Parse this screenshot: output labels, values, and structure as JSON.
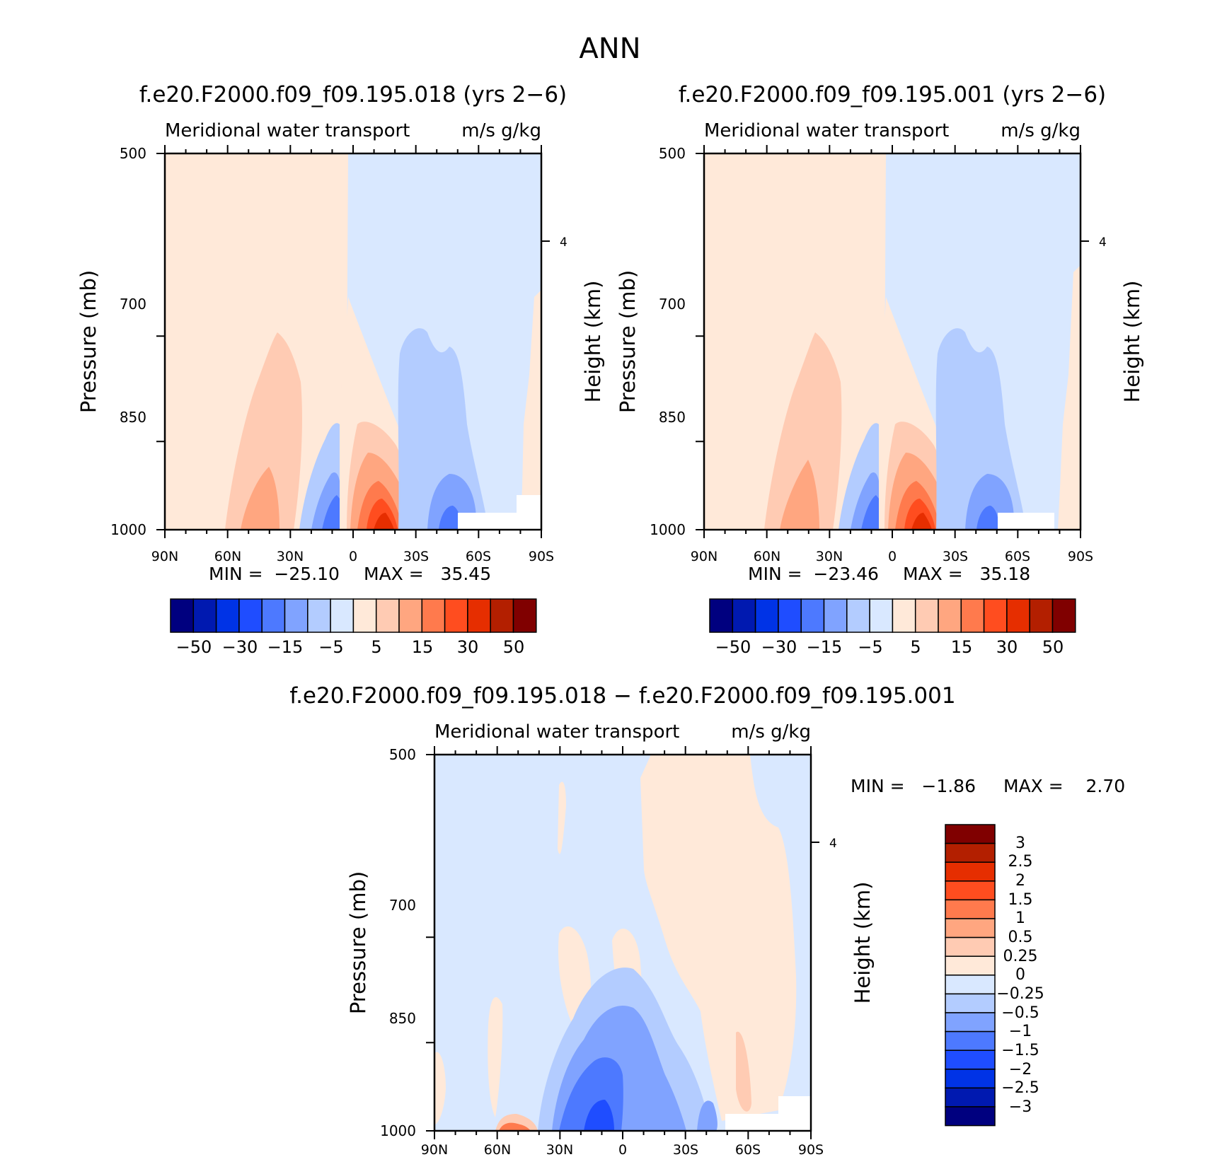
{
  "figure_title": "ANN",
  "chart_data": [
    {
      "type": "heatmap",
      "title": "f.e20.F2000.f09_f09.195.018 (yrs 2-6)",
      "variable_label": "Meridional water transport",
      "units": "m/s g/kg",
      "ylabel": "Pressure (mb)",
      "ylabel_right": "Height (km)",
      "x_ticks": [
        "90N",
        "60N",
        "30N",
        "0",
        "30S",
        "60S",
        "90S"
      ],
      "y_ticks": [
        500,
        700,
        850,
        1000
      ],
      "y_right_ticks": [
        4
      ],
      "ylim": [
        1000,
        500
      ],
      "min_text": "MIN =  -25.10",
      "max_text": "MAX =   35.45",
      "stats": {
        "min": -25.1,
        "max": 35.45
      },
      "colorbar": {
        "levels": [
          -50,
          -40,
          -30,
          -20,
          -15,
          -10,
          -5,
          0,
          5,
          10,
          15,
          20,
          30,
          40,
          50
        ],
        "labels": [
          "-50",
          "-30",
          "-15",
          "-5",
          "5",
          "15",
          "30",
          "50"
        ]
      }
    },
    {
      "type": "heatmap",
      "title": "f.e20.F2000.f09_f09.195.001 (yrs 2-6)",
      "variable_label": "Meridional water transport",
      "units": "m/s g/kg",
      "ylabel": "Pressure (mb)",
      "ylabel_right": "Height (km)",
      "x_ticks": [
        "90N",
        "60N",
        "30N",
        "0",
        "30S",
        "60S",
        "90S"
      ],
      "y_ticks": [
        500,
        700,
        850,
        1000
      ],
      "y_right_ticks": [
        4
      ],
      "ylim": [
        1000,
        500
      ],
      "min_text": "MIN =  -23.46",
      "max_text": "MAX =   35.18",
      "stats": {
        "min": -23.46,
        "max": 35.18
      },
      "colorbar": {
        "levels": [
          -50,
          -40,
          -30,
          -20,
          -15,
          -10,
          -5,
          0,
          5,
          10,
          15,
          20,
          30,
          40,
          50
        ],
        "labels": [
          "-50",
          "-30",
          "-15",
          "-5",
          "5",
          "15",
          "30",
          "50"
        ]
      }
    },
    {
      "type": "heatmap",
      "title": "f.e20.F2000.f09_f09.195.018 - f.e20.F2000.f09_f09.195.001",
      "variable_label": "Meridional water transport",
      "units": "m/s g/kg",
      "ylabel": "Pressure (mb)",
      "ylabel_right": "Height (km)",
      "x_ticks": [
        "90N",
        "60N",
        "30N",
        "0",
        "30S",
        "60S",
        "90S"
      ],
      "y_ticks": [
        500,
        700,
        850,
        1000
      ],
      "y_right_ticks": [
        4
      ],
      "ylim": [
        1000,
        500
      ],
      "min_text": "MIN =   -1.86",
      "max_text": "MAX =    2.70",
      "stats": {
        "min": -1.86,
        "max": 2.7
      },
      "colorbar": {
        "levels": [
          -3,
          -2.5,
          -2,
          -1.5,
          -1,
          -0.5,
          -0.25,
          0,
          0.25,
          0.5,
          1,
          1.5,
          2,
          2.5,
          3
        ],
        "labels": [
          "3",
          "2.5",
          "2",
          "1.5",
          "1",
          "0.5",
          "0.25",
          "0",
          "-0.25",
          "-0.5",
          "-1",
          "-1.5",
          "-2",
          "-2.5",
          "-3"
        ]
      }
    }
  ],
  "palette": [
    "#00007f",
    "#0019b0",
    "#0033e6",
    "#1f4dff",
    "#4d79ff",
    "#80a3ff",
    "#b3ccff",
    "#d9e8ff",
    "#ffe9d9",
    "#ffcbb3",
    "#ffa680",
    "#ff7a4d",
    "#ff4d1f",
    "#e62e00",
    "#b31f00",
    "#800000"
  ]
}
